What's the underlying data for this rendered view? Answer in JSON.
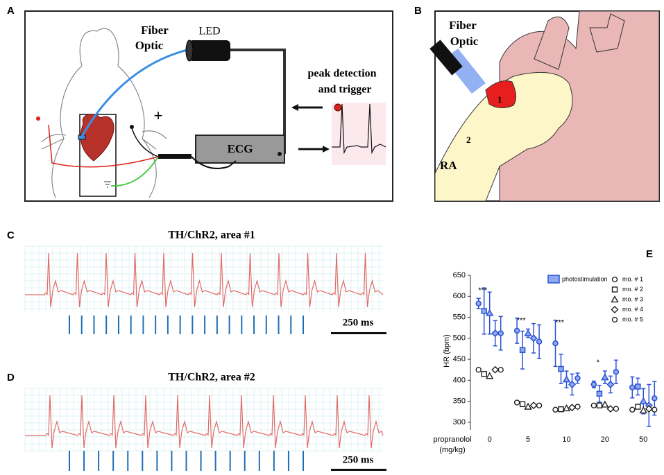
{
  "panels": {
    "a": {
      "label": "A",
      "fiber_optic": [
        "Fiber",
        "Optic"
      ],
      "led": "LED",
      "peak_detection": [
        "peak detection",
        "and trigger"
      ],
      "ecg": "ECG",
      "plus": "+"
    },
    "b": {
      "label": "B",
      "fiber_optic": [
        "Fiber",
        "Optic"
      ],
      "site_1": "1",
      "site_2": "2",
      "ra": "RA"
    },
    "c": {
      "label": "C",
      "title": "TH/ChR2, area #1",
      "scale_bar": "250 ms"
    },
    "d": {
      "label": "D",
      "title": "TH/ChR2, area #2",
      "scale_bar": "250 ms"
    },
    "e": {
      "label": "E"
    }
  },
  "chart_data": {
    "type": "scatter",
    "y_label": "HR (bpm)",
    "x_label": [
      "propranolol",
      "(mg/kg)"
    ],
    "categories": [
      "0",
      "5",
      "10",
      "20",
      "50"
    ],
    "ylim": [
      290,
      650
    ],
    "yticks": [
      300,
      350,
      400,
      450,
      500,
      550,
      600,
      650
    ],
    "annotations": [
      "***",
      "***",
      "***",
      "*",
      null
    ],
    "photostimulation": {
      "name": "photostimulation",
      "color": "#2c52d4",
      "fill": "#8fa8f0"
    },
    "baseline_color": "#111111",
    "series": [
      {
        "name": "mo. # 1",
        "marker": "circle",
        "values": [
          425,
          347,
          330,
          340,
          330
        ],
        "photo_values": [
          583,
          518,
          488,
          390,
          383
        ],
        "photo_errors": [
          12,
          30,
          55,
          8,
          25
        ]
      },
      {
        "name": "mo. # 2",
        "marker": "square",
        "values": [
          415,
          343,
          331,
          340,
          337
        ],
        "photo_values": [
          565,
          472,
          427,
          368,
          385
        ],
        "photo_errors": [
          55,
          45,
          35,
          20,
          20
        ]
      },
      {
        "name": "mo. # 3",
        "marker": "triangle",
        "values": [
          410,
          337,
          333,
          342,
          328
        ],
        "photo_values": [
          560,
          512,
          402,
          407,
          350
        ],
        "photo_errors": [
          50,
          10,
          20,
          15,
          30
        ]
      },
      {
        "name": "mo. # 4",
        "marker": "diamond",
        "values": [
          425,
          340,
          335,
          332,
          332
        ],
        "photo_values": [
          512,
          500,
          390,
          390,
          340
        ],
        "photo_errors": [
          30,
          35,
          25,
          20,
          50
        ]
      },
      {
        "name": "mo. # 5",
        "marker": "circle",
        "values": [
          425,
          340,
          337,
          332,
          330
        ],
        "photo_values": [
          512,
          492,
          405,
          420,
          357
        ],
        "photo_errors": [
          40,
          40,
          12,
          28,
          40
        ]
      }
    ]
  }
}
